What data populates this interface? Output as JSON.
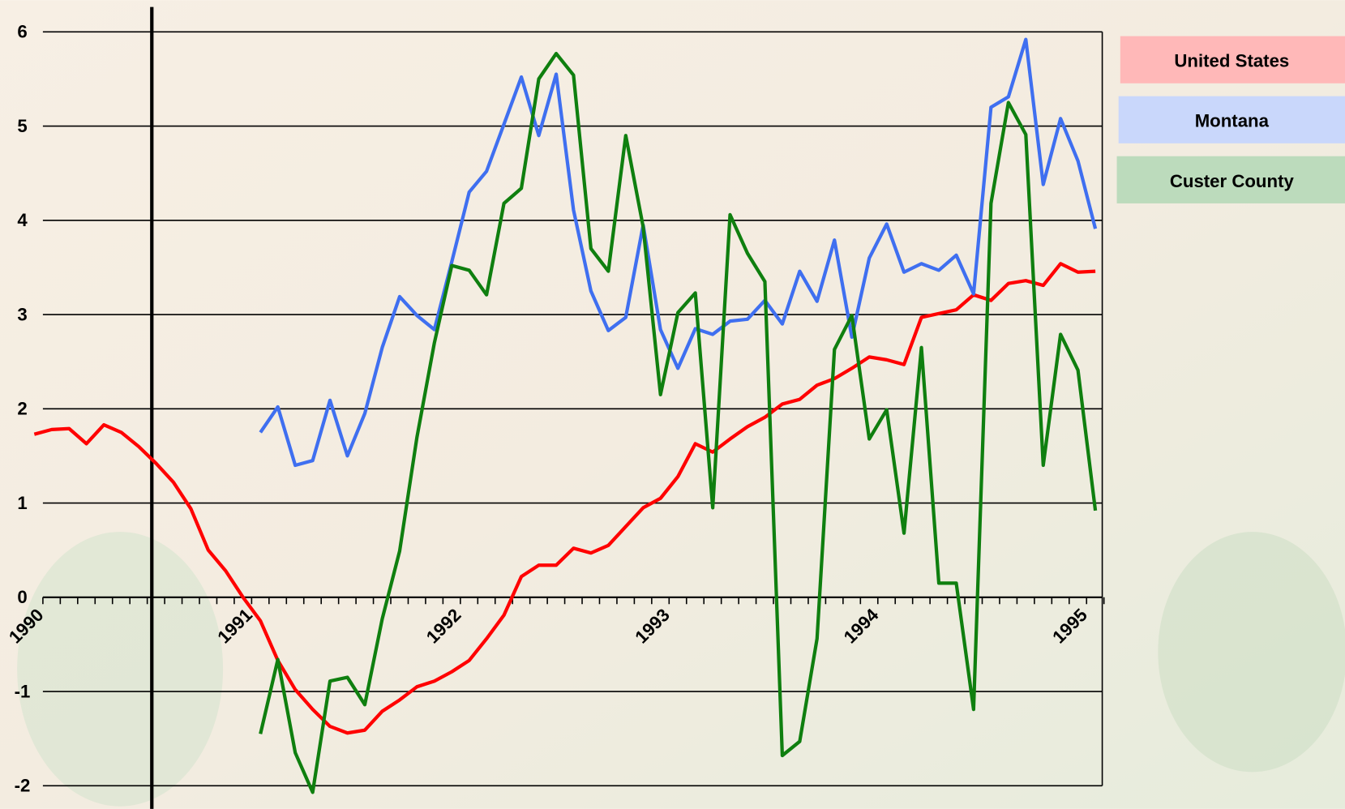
{
  "chart_data": {
    "type": "line",
    "categories": [
      "1990",
      null,
      null,
      null,
      null,
      null,
      null,
      null,
      null,
      null,
      null,
      null,
      "1991",
      null,
      null,
      null,
      null,
      null,
      null,
      null,
      null,
      null,
      null,
      null,
      "1992",
      null,
      null,
      null,
      null,
      null,
      null,
      null,
      null,
      null,
      null,
      null,
      "1993",
      null,
      null,
      null,
      null,
      null,
      null,
      null,
      null,
      null,
      null,
      null,
      "1994",
      null,
      null,
      null,
      null,
      null,
      null,
      null,
      null,
      null,
      null,
      null,
      "1995",
      null
    ],
    "series": [
      {
        "name": "United States",
        "color": "#ff0000",
        "values": [
          1.73,
          1.78,
          1.79,
          1.63,
          1.83,
          1.75,
          1.6,
          1.42,
          1.22,
          0.94,
          0.5,
          0.28,
          0.0,
          -0.25,
          -0.67,
          -0.98,
          -1.19,
          -1.37,
          -1.44,
          -1.41,
          -1.21,
          -1.09,
          -0.95,
          -0.89,
          -0.79,
          -0.67,
          -0.44,
          -0.19,
          0.22,
          0.34,
          0.34,
          0.52,
          0.47,
          0.55,
          0.75,
          0.95,
          1.05,
          1.28,
          1.63,
          1.54,
          1.68,
          1.81,
          1.91,
          2.05,
          2.1,
          2.25,
          2.32,
          2.43,
          2.55,
          2.52,
          2.47,
          2.97,
          3.01,
          3.05,
          3.21,
          3.15,
          3.33,
          3.36,
          3.31,
          3.54,
          3.45,
          3.46
        ]
      },
      {
        "name": "Montana",
        "color": "#3f6ff0",
        "values": [
          null,
          null,
          null,
          null,
          null,
          null,
          null,
          null,
          null,
          null,
          null,
          null,
          null,
          1.75,
          2.02,
          1.4,
          1.45,
          2.09,
          1.5,
          1.95,
          2.65,
          3.19,
          2.99,
          2.84,
          3.56,
          4.3,
          4.52,
          5.02,
          5.52,
          4.9,
          5.55,
          4.11,
          3.25,
          2.83,
          2.97,
          3.95,
          2.84,
          2.43,
          2.85,
          2.79,
          2.93,
          2.95,
          3.15,
          2.9,
          3.46,
          3.14,
          3.79,
          2.76,
          3.6,
          3.96,
          3.45,
          3.54,
          3.47,
          3.63,
          3.22,
          5.2,
          5.31,
          5.92,
          4.38,
          5.08,
          4.63,
          3.91
        ]
      },
      {
        "name": "Custer County",
        "color": "#0f7f0f",
        "values": [
          null,
          null,
          null,
          null,
          null,
          null,
          null,
          null,
          null,
          null,
          null,
          null,
          null,
          -1.45,
          -0.66,
          -1.65,
          -2.07,
          -0.89,
          -0.85,
          -1.14,
          -0.23,
          0.49,
          1.7,
          2.7,
          3.52,
          3.47,
          3.21,
          4.18,
          4.34,
          5.5,
          5.77,
          5.54,
          3.7,
          3.46,
          4.9,
          3.93,
          2.15,
          3.02,
          3.23,
          0.95,
          4.06,
          3.65,
          3.35,
          -1.68,
          -1.53,
          -0.44,
          2.63,
          2.99,
          1.68,
          1.99,
          0.68,
          2.65,
          0.15,
          0.15,
          -1.19,
          4.18,
          5.25,
          4.91,
          1.4,
          2.79,
          2.41,
          0.92
        ]
      }
    ],
    "ylim": [
      -2,
      6
    ],
    "yticks": [
      -2,
      -1,
      0,
      1,
      2,
      3,
      4,
      5,
      6
    ],
    "grid": true
  }
}
